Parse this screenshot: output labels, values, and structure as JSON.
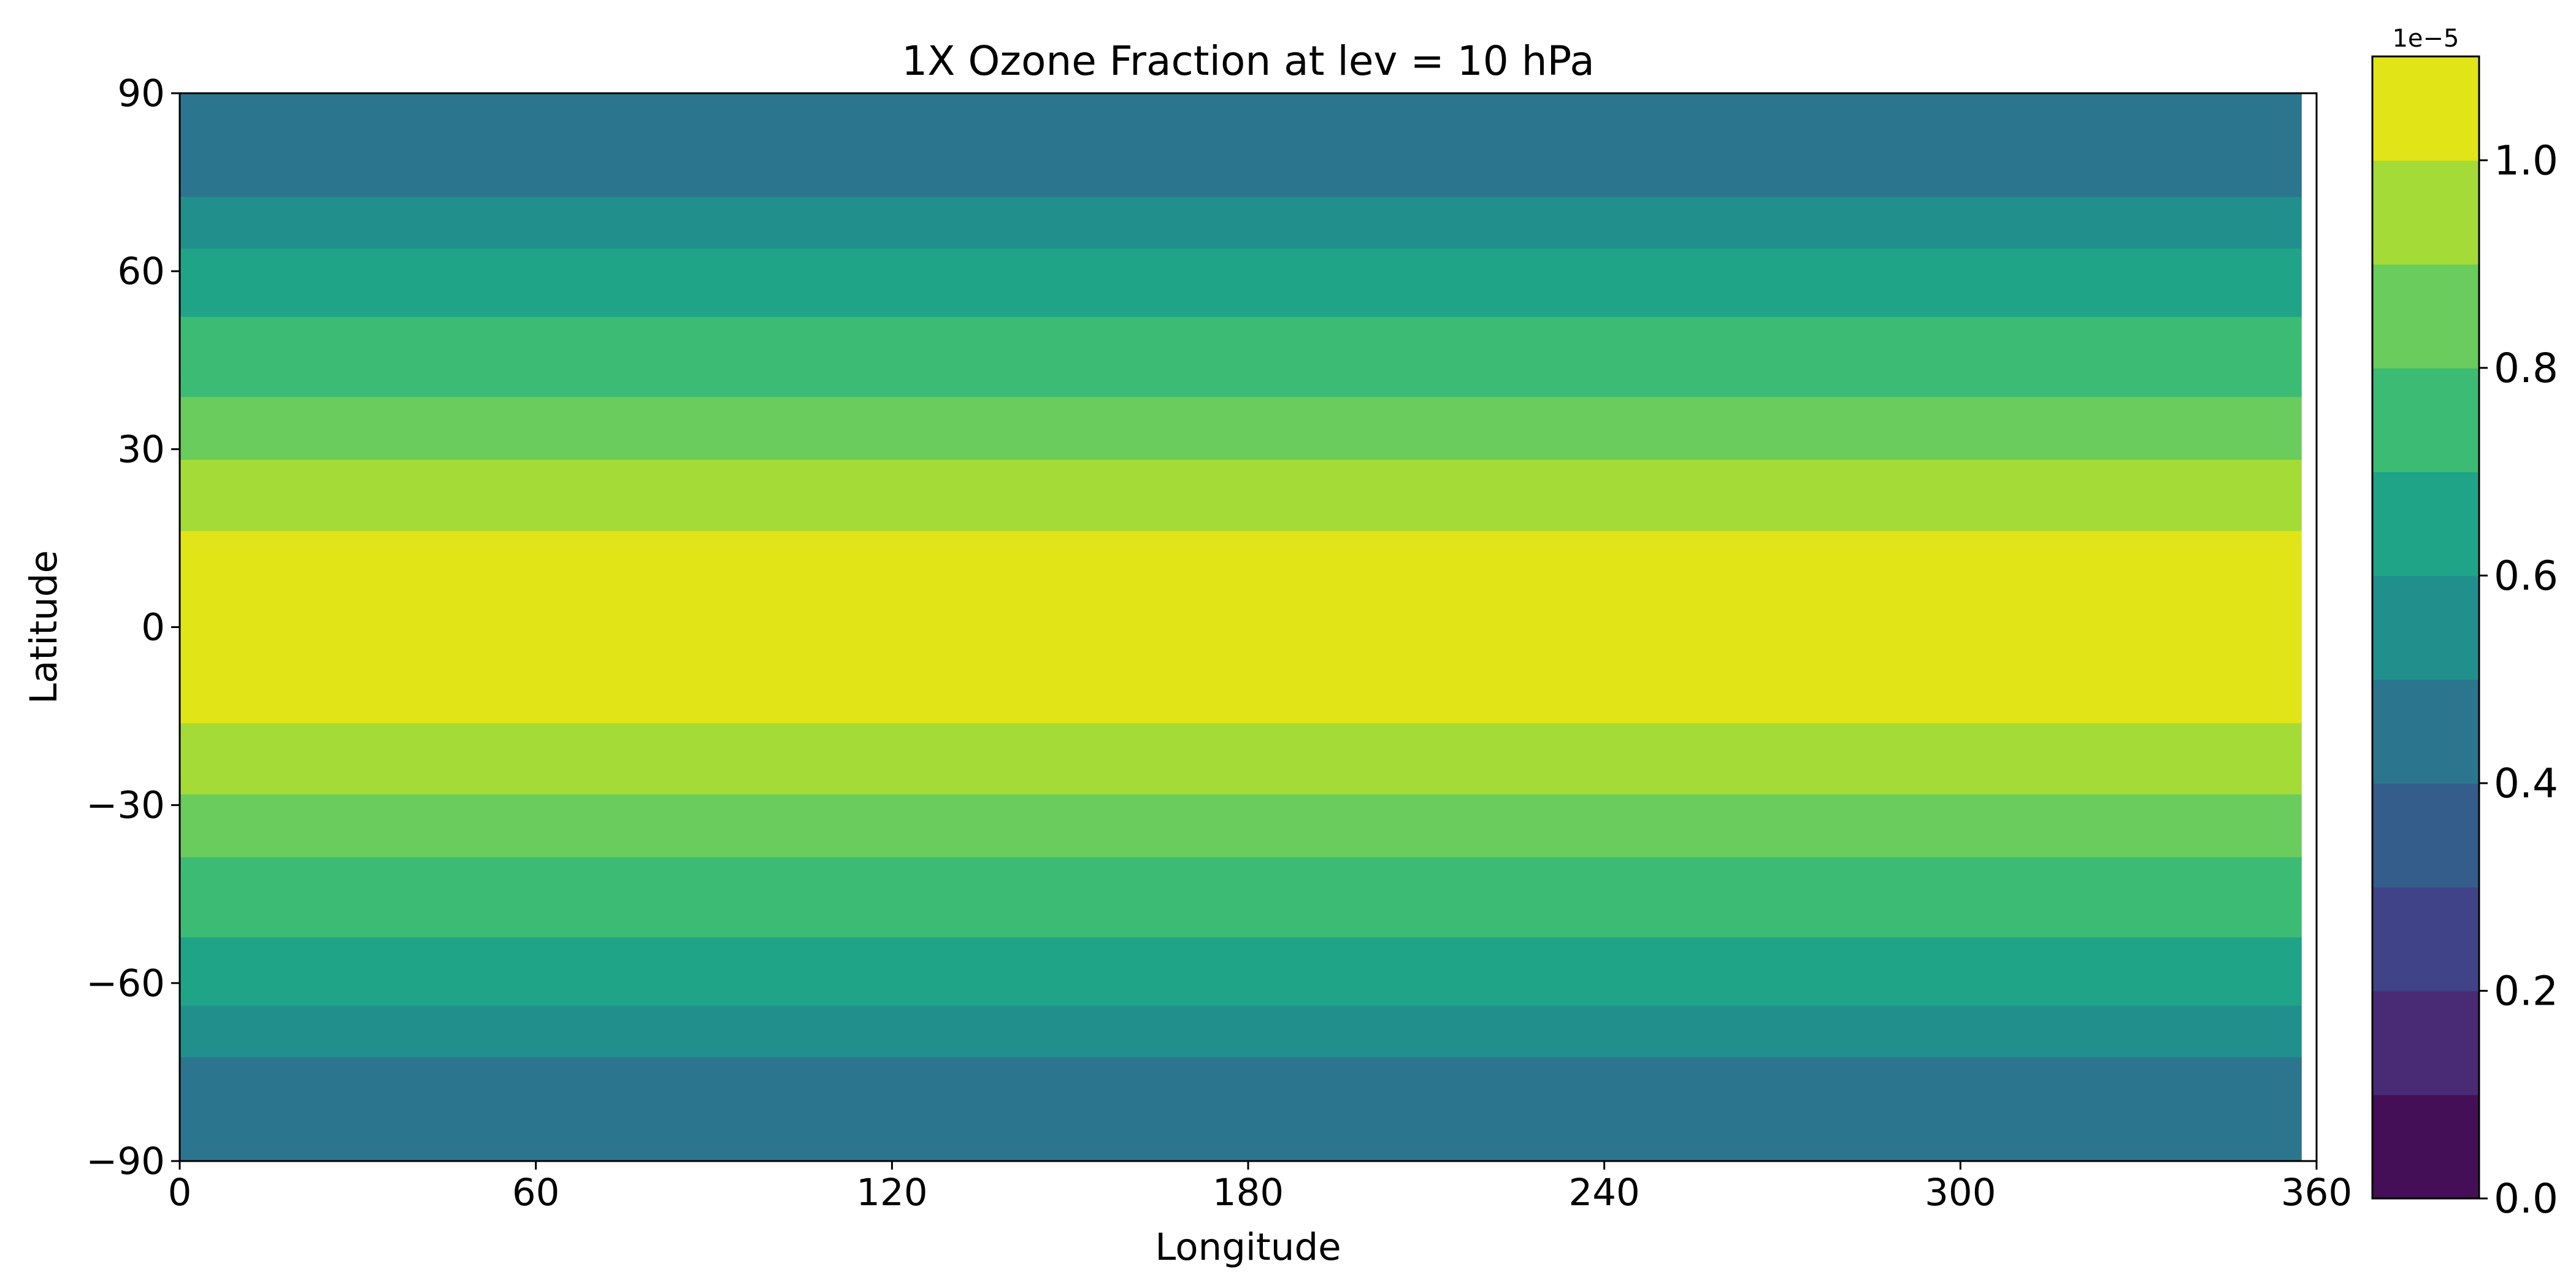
{
  "chart_data": {
    "type": "heatmap",
    "title": "1X Ozone Fraction at lev = 10 hPa",
    "xlabel": "Longitude",
    "ylabel": "Latitude",
    "xlim": [
      0,
      360
    ],
    "ylim": [
      -90,
      90
    ],
    "x_data_max": 357.5,
    "x_ticks": [
      0,
      60,
      120,
      180,
      240,
      300,
      360
    ],
    "x_tick_labels": [
      "0",
      "60",
      "120",
      "180",
      "240",
      "300",
      "360"
    ],
    "y_ticks": [
      90,
      60,
      30,
      0,
      -30,
      -60,
      -90
    ],
    "y_tick_labels": [
      "90",
      "60",
      "30",
      "0",
      "−30",
      "−60",
      "−90"
    ],
    "bands": [
      {
        "lat_min": 72.5,
        "lat_max": 90,
        "level": 4
      },
      {
        "lat_min": 63.8,
        "lat_max": 72.5,
        "level": 5
      },
      {
        "lat_min": 52.3,
        "lat_max": 63.8,
        "level": 6
      },
      {
        "lat_min": 38.8,
        "lat_max": 52.3,
        "level": 7
      },
      {
        "lat_min": 28.2,
        "lat_max": 38.8,
        "level": 8
      },
      {
        "lat_min": 16.2,
        "lat_max": 28.2,
        "level": 9
      },
      {
        "lat_min": -16.2,
        "lat_max": 16.2,
        "level": 10
      },
      {
        "lat_min": -28.2,
        "lat_max": -16.2,
        "level": 9
      },
      {
        "lat_min": -38.8,
        "lat_max": -28.2,
        "level": 8
      },
      {
        "lat_min": -52.3,
        "lat_max": -38.8,
        "level": 7
      },
      {
        "lat_min": -63.8,
        "lat_max": -52.3,
        "level": 6
      },
      {
        "lat_min": -72.5,
        "lat_max": -63.8,
        "level": 5
      },
      {
        "lat_min": -90,
        "lat_max": -72.5,
        "level": 4
      }
    ],
    "colorbar": {
      "levels": [
        0.0,
        0.1,
        0.2,
        0.3,
        0.4,
        0.5,
        0.6,
        0.7,
        0.8,
        0.9,
        1.0,
        1.1
      ],
      "colors": [
        "#440f56",
        "#482a75",
        "#404387",
        "#345d8c",
        "#2b768e",
        "#21908d",
        "#1fa487",
        "#3cbb75",
        "#69cc5c",
        "#a5db36",
        "#e1e417"
      ],
      "ticks": [
        0.0,
        0.2,
        0.4,
        0.6,
        0.8,
        1.0
      ],
      "tick_labels": [
        "0.0",
        "0.2",
        "0.4",
        "0.6",
        "0.8",
        "1.0"
      ],
      "offset_text": "1e−5"
    },
    "grid": false
  }
}
